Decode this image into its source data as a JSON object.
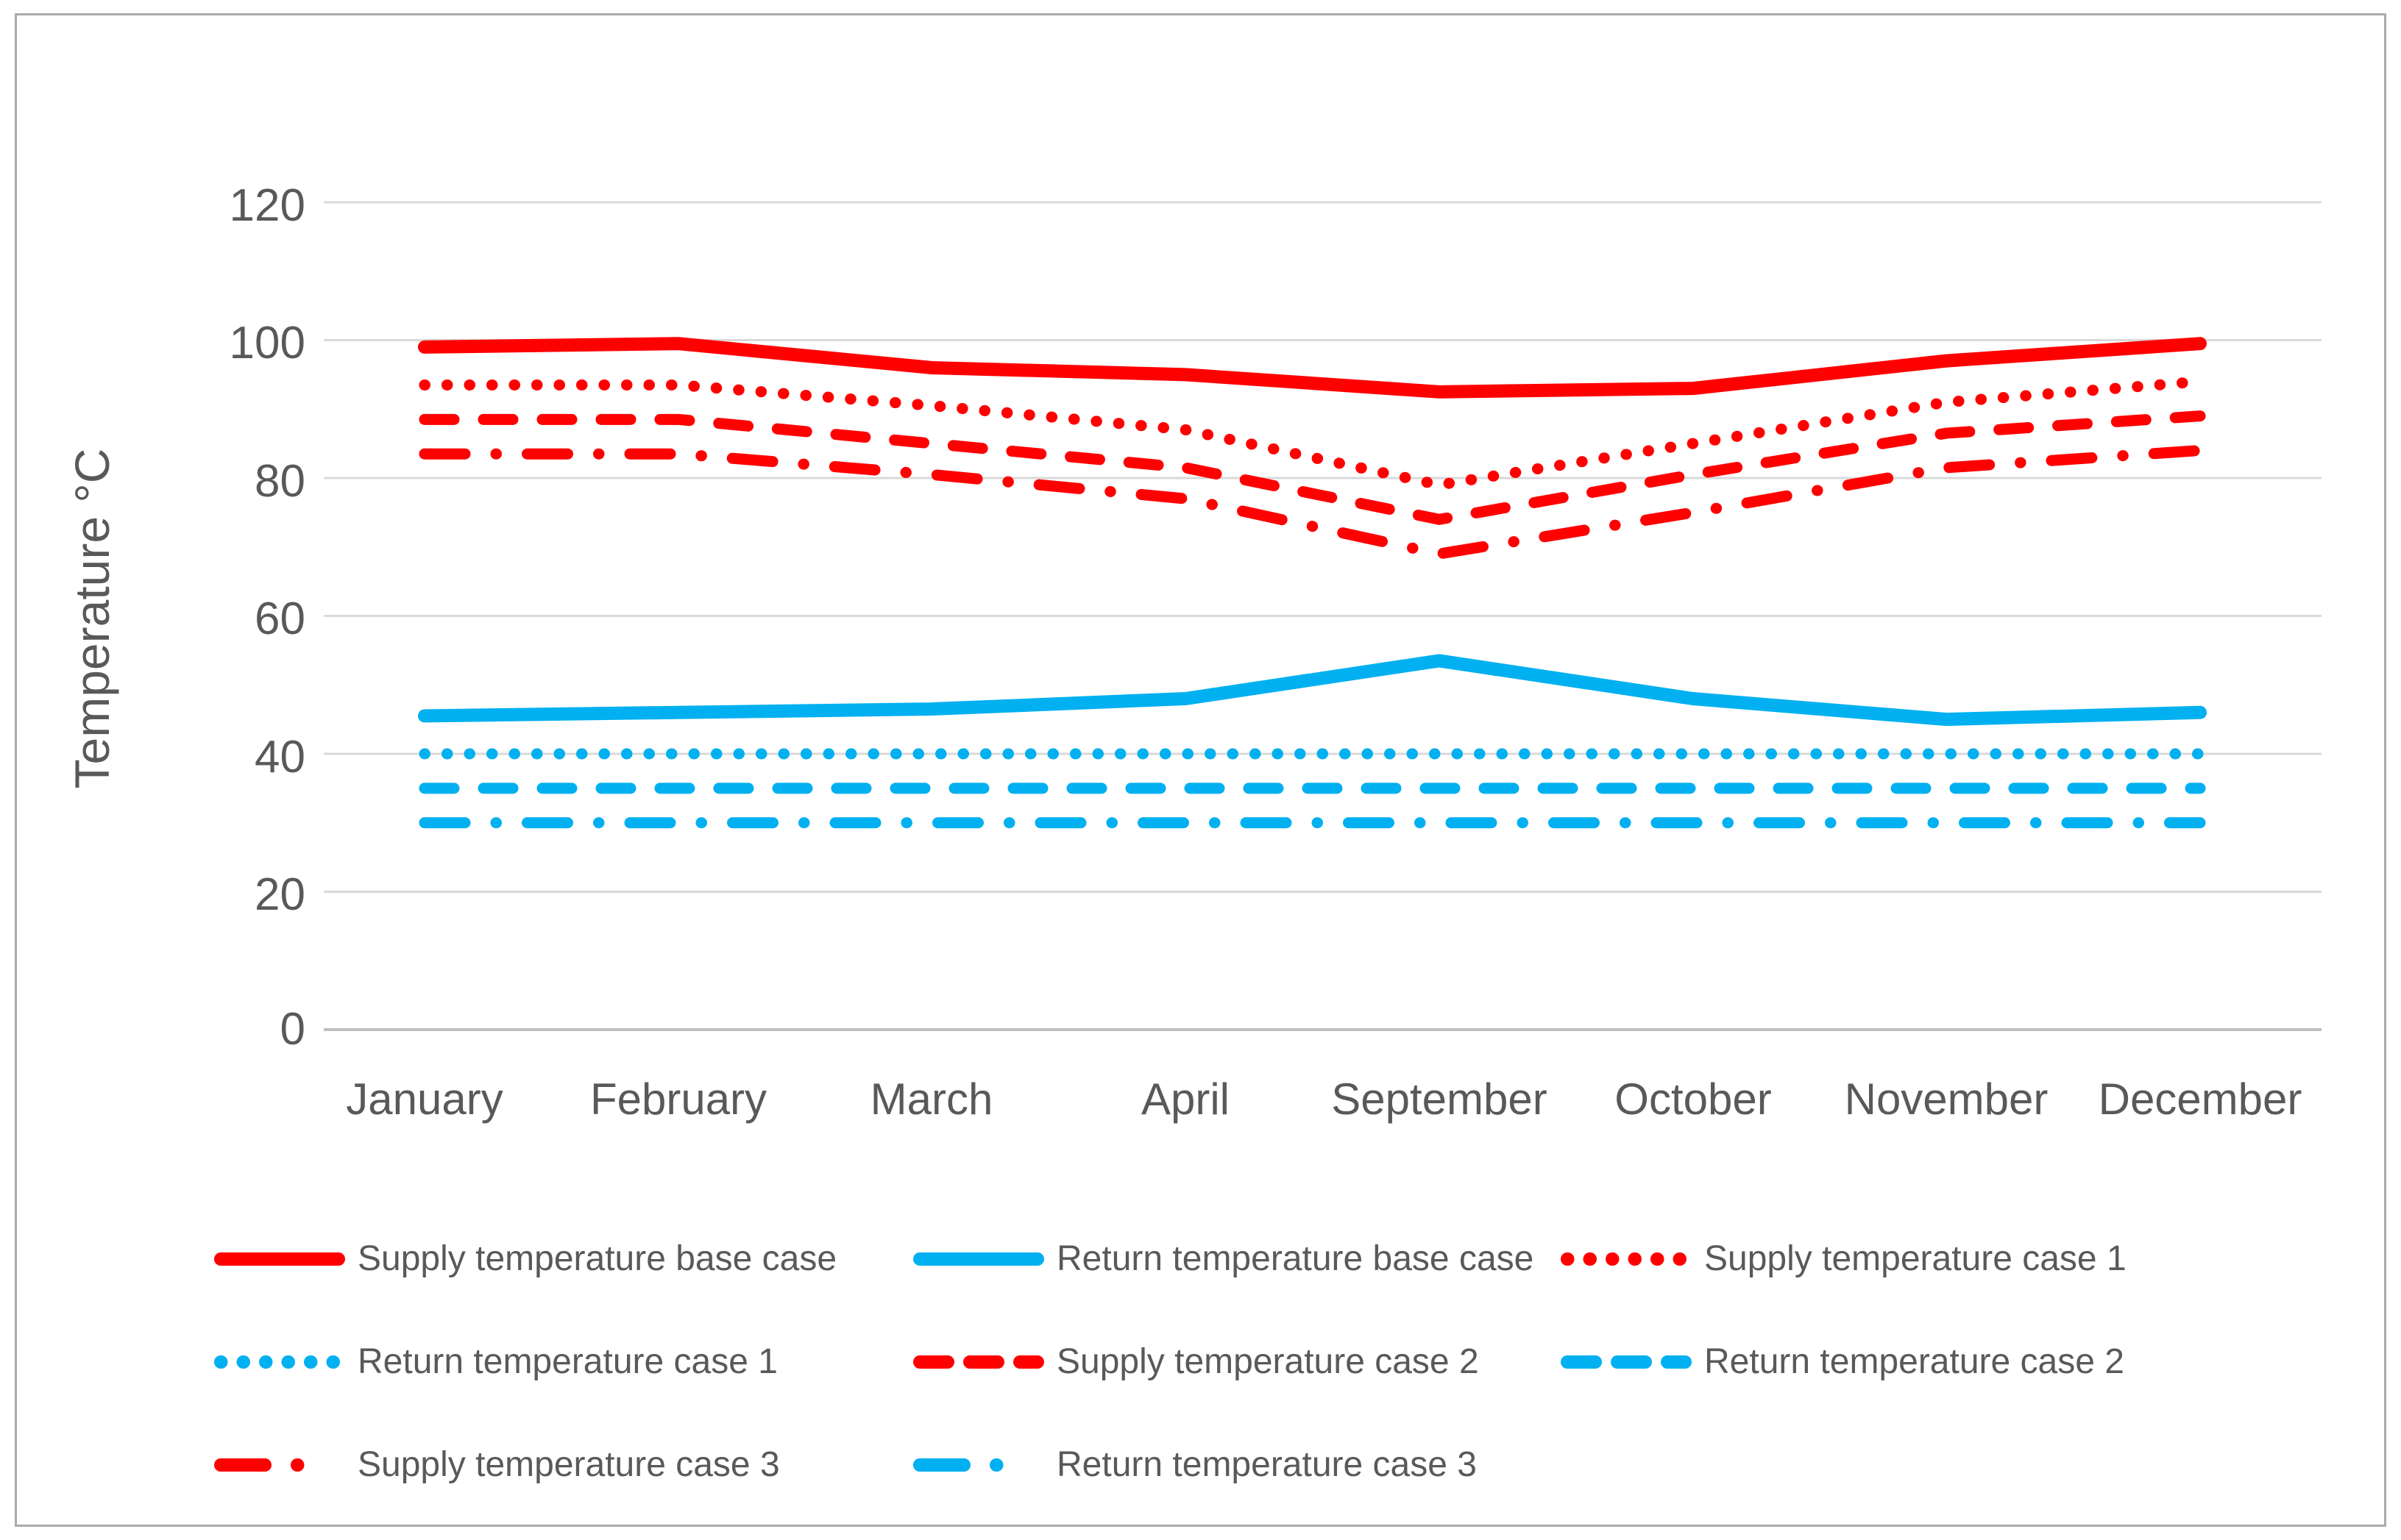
{
  "chart_data": {
    "type": "line",
    "title": "",
    "xlabel": "",
    "ylabel": "Temperature °C",
    "ylim": [
      0,
      120
    ],
    "yticks": [
      120,
      100,
      80,
      60,
      40,
      20,
      0
    ],
    "grid": "horizontal",
    "legend_position": "bottom",
    "categories": [
      "January",
      "February",
      "March",
      "April",
      "September",
      "October",
      "November",
      "December"
    ],
    "series": [
      {
        "name": "Supply temperature base case",
        "color": "#FF0000",
        "style": "solid",
        "values": [
          99,
          99.5,
          96,
          95,
          92.5,
          93,
          97,
          99.5
        ]
      },
      {
        "name": "Return temperature base case",
        "color": "#00B0F0",
        "style": "solid",
        "values": [
          45.5,
          46,
          46.5,
          48,
          53.5,
          48,
          45,
          46
        ]
      },
      {
        "name": "Supply temperature case 1",
        "color": "#FF0000",
        "style": "dotted",
        "values": [
          93.5,
          93.5,
          90.5,
          87,
          79,
          85,
          91,
          94
        ]
      },
      {
        "name": "Return temperature case 1",
        "color": "#00B0F0",
        "style": "dotted",
        "values": [
          40,
          40,
          40,
          40,
          40,
          40,
          40,
          40
        ]
      },
      {
        "name": "Supply temperature case 2",
        "color": "#FF0000",
        "style": "dashed",
        "values": [
          88.5,
          88.5,
          85,
          81.5,
          74,
          80.5,
          86.5,
          89
        ]
      },
      {
        "name": "Return temperature case 2",
        "color": "#00B0F0",
        "style": "dashed",
        "values": [
          35,
          35,
          35,
          35,
          35,
          35,
          35,
          35
        ]
      },
      {
        "name": "Supply temperature case 3",
        "color": "#FF0000",
        "style": "dashdot",
        "values": [
          83.5,
          83.5,
          80.5,
          77,
          69,
          75,
          81.5,
          84
        ]
      },
      {
        "name": "Return temperature case 3",
        "color": "#00B0F0",
        "style": "dashdot",
        "values": [
          30,
          30,
          30,
          30,
          30,
          30,
          30,
          30
        ]
      }
    ],
    "colors": {
      "supply": "#FF0000",
      "return": "#00B0F0",
      "gridline": "#D9D9D9",
      "axis_line": "#BFBFBF",
      "text": "#595959"
    }
  }
}
